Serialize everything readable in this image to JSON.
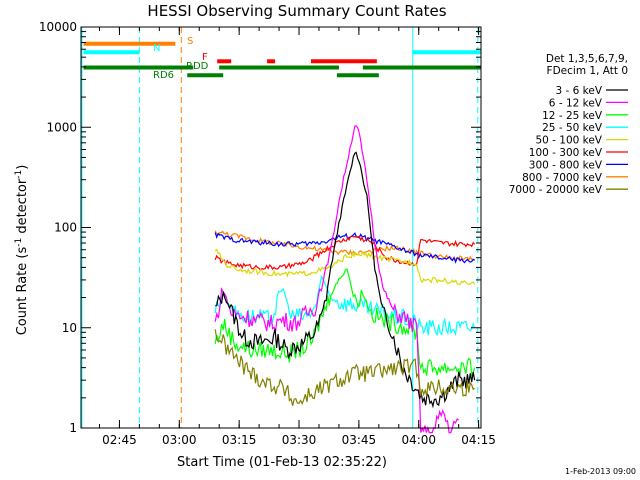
{
  "chart_data": {
    "type": "line",
    "title": "HESSI Observing Summary Count Rates",
    "xlabel": "Start Time (01-Feb-13 02:35:22)",
    "ylabel_main": "Count Rate (s",
    "ylabel_exp": "-1",
    "ylabel_mid": " detector",
    "ylabel_exp2": "-1",
    "ylabel_end": ")",
    "footer": "1-Feb-2013 09:00",
    "x_range_min": [
      155.37,
      255.6
    ],
    "y_log_range": [
      1,
      10000
    ],
    "x_ticks": [
      {
        "label": "02:45",
        "value": 165
      },
      {
        "label": "03:00",
        "value": 180
      },
      {
        "label": "03:15",
        "value": 195
      },
      {
        "label": "03:30",
        "value": 210
      },
      {
        "label": "03:45",
        "value": 225
      },
      {
        "label": "04:00",
        "value": 240
      },
      {
        "label": "04:15",
        "value": 255
      }
    ],
    "y_ticks": [
      {
        "label": "1",
        "value": 1
      },
      {
        "label": "10",
        "value": 10
      },
      {
        "label": "100",
        "value": 100
      },
      {
        "label": "1000",
        "value": 1000
      },
      {
        "label": "10000",
        "value": 10000
      }
    ],
    "legend_header": [
      "Det 1,3,5,6,7,9,",
      "FDecim 1, Att 0"
    ],
    "series": [
      {
        "name": "3 - 6 keV",
        "color": "#000000",
        "points": [
          [
            189,
            15
          ],
          [
            191,
            22
          ],
          [
            193,
            15
          ],
          [
            196,
            8
          ],
          [
            200,
            7
          ],
          [
            204,
            8
          ],
          [
            207,
            6
          ],
          [
            211,
            7
          ],
          [
            214,
            9
          ],
          [
            216,
            14
          ],
          [
            218,
            40
          ],
          [
            220,
            110
          ],
          [
            222,
            260
          ],
          [
            224,
            580
          ],
          [
            225,
            480
          ],
          [
            227,
            200
          ],
          [
            229,
            40
          ],
          [
            231,
            14
          ],
          [
            233,
            10
          ],
          [
            236,
            4
          ],
          [
            238,
            3
          ],
          [
            241,
            2
          ],
          [
            245,
            2
          ],
          [
            250,
            3
          ],
          [
            254,
            3
          ]
        ]
      },
      {
        "name": "6 - 12 keV",
        "color": "#ff00ff",
        "points": [
          [
            189,
            11
          ],
          [
            191,
            24
          ],
          [
            193,
            14
          ],
          [
            196,
            13
          ],
          [
            199,
            12
          ],
          [
            203,
            11
          ],
          [
            206,
            12
          ],
          [
            209,
            11
          ],
          [
            212,
            14
          ],
          [
            214,
            16
          ],
          [
            216,
            30
          ],
          [
            218,
            60
          ],
          [
            220,
            180
          ],
          [
            222,
            440
          ],
          [
            224,
            1050
          ],
          [
            225,
            900
          ],
          [
            227,
            300
          ],
          [
            229,
            70
          ],
          [
            231,
            25
          ],
          [
            234,
            14
          ],
          [
            236,
            13
          ],
          [
            238,
            11
          ],
          [
            239.5,
            10
          ],
          [
            240.5,
            1
          ],
          [
            243,
            0.8
          ],
          [
            246,
            1.5
          ],
          [
            248,
            0.9
          ],
          [
            250,
            1.2
          ]
        ]
      },
      {
        "name": "12 - 25 keV",
        "color": "#00ff00",
        "points": [
          [
            189,
            7
          ],
          [
            191,
            11
          ],
          [
            194,
            7
          ],
          [
            198,
            6
          ],
          [
            203,
            6
          ],
          [
            208,
            5.5
          ],
          [
            213,
            7
          ],
          [
            216,
            14
          ],
          [
            218,
            22
          ],
          [
            220,
            30
          ],
          [
            222,
            40
          ],
          [
            224,
            18
          ],
          [
            226,
            22
          ],
          [
            228,
            14
          ],
          [
            231,
            12
          ],
          [
            234,
            11
          ],
          [
            237,
            10
          ],
          [
            239.5,
            9
          ],
          [
            240.5,
            4
          ],
          [
            245,
            4
          ],
          [
            250,
            4
          ],
          [
            254,
            4
          ]
        ]
      },
      {
        "name": "25 - 50 keV",
        "color": "#00ffff",
        "points": [
          [
            189,
            15
          ],
          [
            191,
            22
          ],
          [
            194,
            14
          ],
          [
            198,
            13
          ],
          [
            203,
            12
          ],
          [
            206,
            25
          ],
          [
            208,
            13
          ],
          [
            212,
            13
          ],
          [
            214,
            16
          ],
          [
            216,
            30
          ],
          [
            218,
            20
          ],
          [
            220,
            18
          ],
          [
            224,
            17
          ],
          [
            228,
            15
          ],
          [
            231,
            14
          ],
          [
            234,
            13
          ],
          [
            238,
            12
          ],
          [
            239.5,
            11
          ],
          [
            240.5,
            10
          ],
          [
            245,
            10
          ],
          [
            250,
            10
          ],
          [
            254,
            10
          ]
        ]
      },
      {
        "name": "50 - 100 keV",
        "color": "#d8d800",
        "points": [
          [
            189,
            60
          ],
          [
            192,
            42
          ],
          [
            195,
            38
          ],
          [
            200,
            36
          ],
          [
            206,
            34
          ],
          [
            212,
            35
          ],
          [
            218,
            40
          ],
          [
            222,
            52
          ],
          [
            226,
            54
          ],
          [
            230,
            50
          ],
          [
            234,
            47
          ],
          [
            238,
            45
          ],
          [
            239.5,
            44
          ],
          [
            240.5,
            30
          ],
          [
            245,
            30
          ],
          [
            250,
            28
          ],
          [
            254,
            27
          ]
        ]
      },
      {
        "name": "100 - 300 keV",
        "color": "#ff0000",
        "points": [
          [
            189,
            50
          ],
          [
            192,
            44
          ],
          [
            195,
            42
          ],
          [
            200,
            40
          ],
          [
            206,
            40
          ],
          [
            212,
            45
          ],
          [
            216,
            58
          ],
          [
            220,
            72
          ],
          [
            224,
            82
          ],
          [
            228,
            72
          ],
          [
            232,
            50
          ],
          [
            236,
            45
          ],
          [
            238,
            44
          ],
          [
            239.5,
            44
          ],
          [
            240.5,
            75
          ],
          [
            245,
            70
          ],
          [
            250,
            68
          ],
          [
            254,
            68
          ]
        ]
      },
      {
        "name": "300 - 800 keV",
        "color": "#0000ff",
        "points": [
          [
            189,
            85
          ],
          [
            192,
            78
          ],
          [
            195,
            74
          ],
          [
            200,
            71
          ],
          [
            206,
            68
          ],
          [
            212,
            69
          ],
          [
            216,
            72
          ],
          [
            220,
            80
          ],
          [
            224,
            84
          ],
          [
            228,
            76
          ],
          [
            232,
            68
          ],
          [
            236,
            60
          ],
          [
            240,
            53
          ],
          [
            245,
            50
          ],
          [
            250,
            47
          ],
          [
            254,
            47
          ]
        ]
      },
      {
        "name": "800 - 7000 keV",
        "color": "#ff8000",
        "points": [
          [
            189,
            90
          ],
          [
            192,
            86
          ],
          [
            196,
            80
          ],
          [
            200,
            74
          ],
          [
            206,
            68
          ],
          [
            212,
            63
          ],
          [
            218,
            58
          ],
          [
            224,
            56
          ],
          [
            228,
            58
          ],
          [
            232,
            62
          ],
          [
            235,
            62
          ],
          [
            238,
            58
          ],
          [
            241,
            55
          ],
          [
            245,
            51
          ],
          [
            250,
            49
          ],
          [
            254,
            48
          ]
        ]
      },
      {
        "name": "7000 - 20000 keV",
        "color": "#808000",
        "points": [
          [
            189,
            9
          ],
          [
            191,
            7
          ],
          [
            194,
            5
          ],
          [
            198,
            3.5
          ],
          [
            202,
            2.8
          ],
          [
            206,
            2.5
          ],
          [
            208,
            2
          ],
          [
            210,
            1.8
          ],
          [
            212,
            2.1
          ],
          [
            216,
            2.5
          ],
          [
            220,
            3
          ],
          [
            224,
            3.5
          ],
          [
            228,
            3.5
          ],
          [
            232,
            3.8
          ],
          [
            236,
            4
          ],
          [
            239.5,
            4
          ],
          [
            240.5,
            2.5
          ],
          [
            245,
            2.5
          ],
          [
            250,
            2.5
          ],
          [
            254,
            2.5
          ]
        ]
      }
    ],
    "status_bars": [
      {
        "label": "S",
        "color": "#ff8000",
        "y": 6800,
        "segments": [
          [
            156,
            179
          ]
        ]
      },
      {
        "label": "N",
        "color": "#00ffff",
        "y": 5600,
        "segments": [
          [
            156,
            170
          ],
          [
            238.5,
            255.6
          ]
        ]
      },
      {
        "label": "F",
        "color": "#ff0000",
        "y": 4550,
        "segments": [
          [
            189.5,
            193
          ],
          [
            202,
            204
          ],
          [
            213,
            229.5
          ]
        ]
      },
      {
        "label": "RDD",
        "color": "#008000",
        "y": 3950,
        "segments": [
          [
            156,
            183.5
          ],
          [
            190,
            220
          ],
          [
            226,
            255.6
          ]
        ]
      },
      {
        "label": "RD6",
        "color": "#008000",
        "y": 3300,
        "segments": [
          [
            182,
            191
          ],
          [
            219.5,
            230
          ]
        ]
      }
    ],
    "vertical_lines": [
      {
        "x": 155.6,
        "color": "#00ffff",
        "dash": false
      },
      {
        "x": 170,
        "color": "#00ffff",
        "dash": true
      },
      {
        "x": 180.5,
        "color": "#ff8000",
        "dash": true
      },
      {
        "x": 238.5,
        "color": "#00ffff",
        "dash": false
      },
      {
        "x": 254.8,
        "color": "#00ffff",
        "dash": true
      }
    ]
  }
}
